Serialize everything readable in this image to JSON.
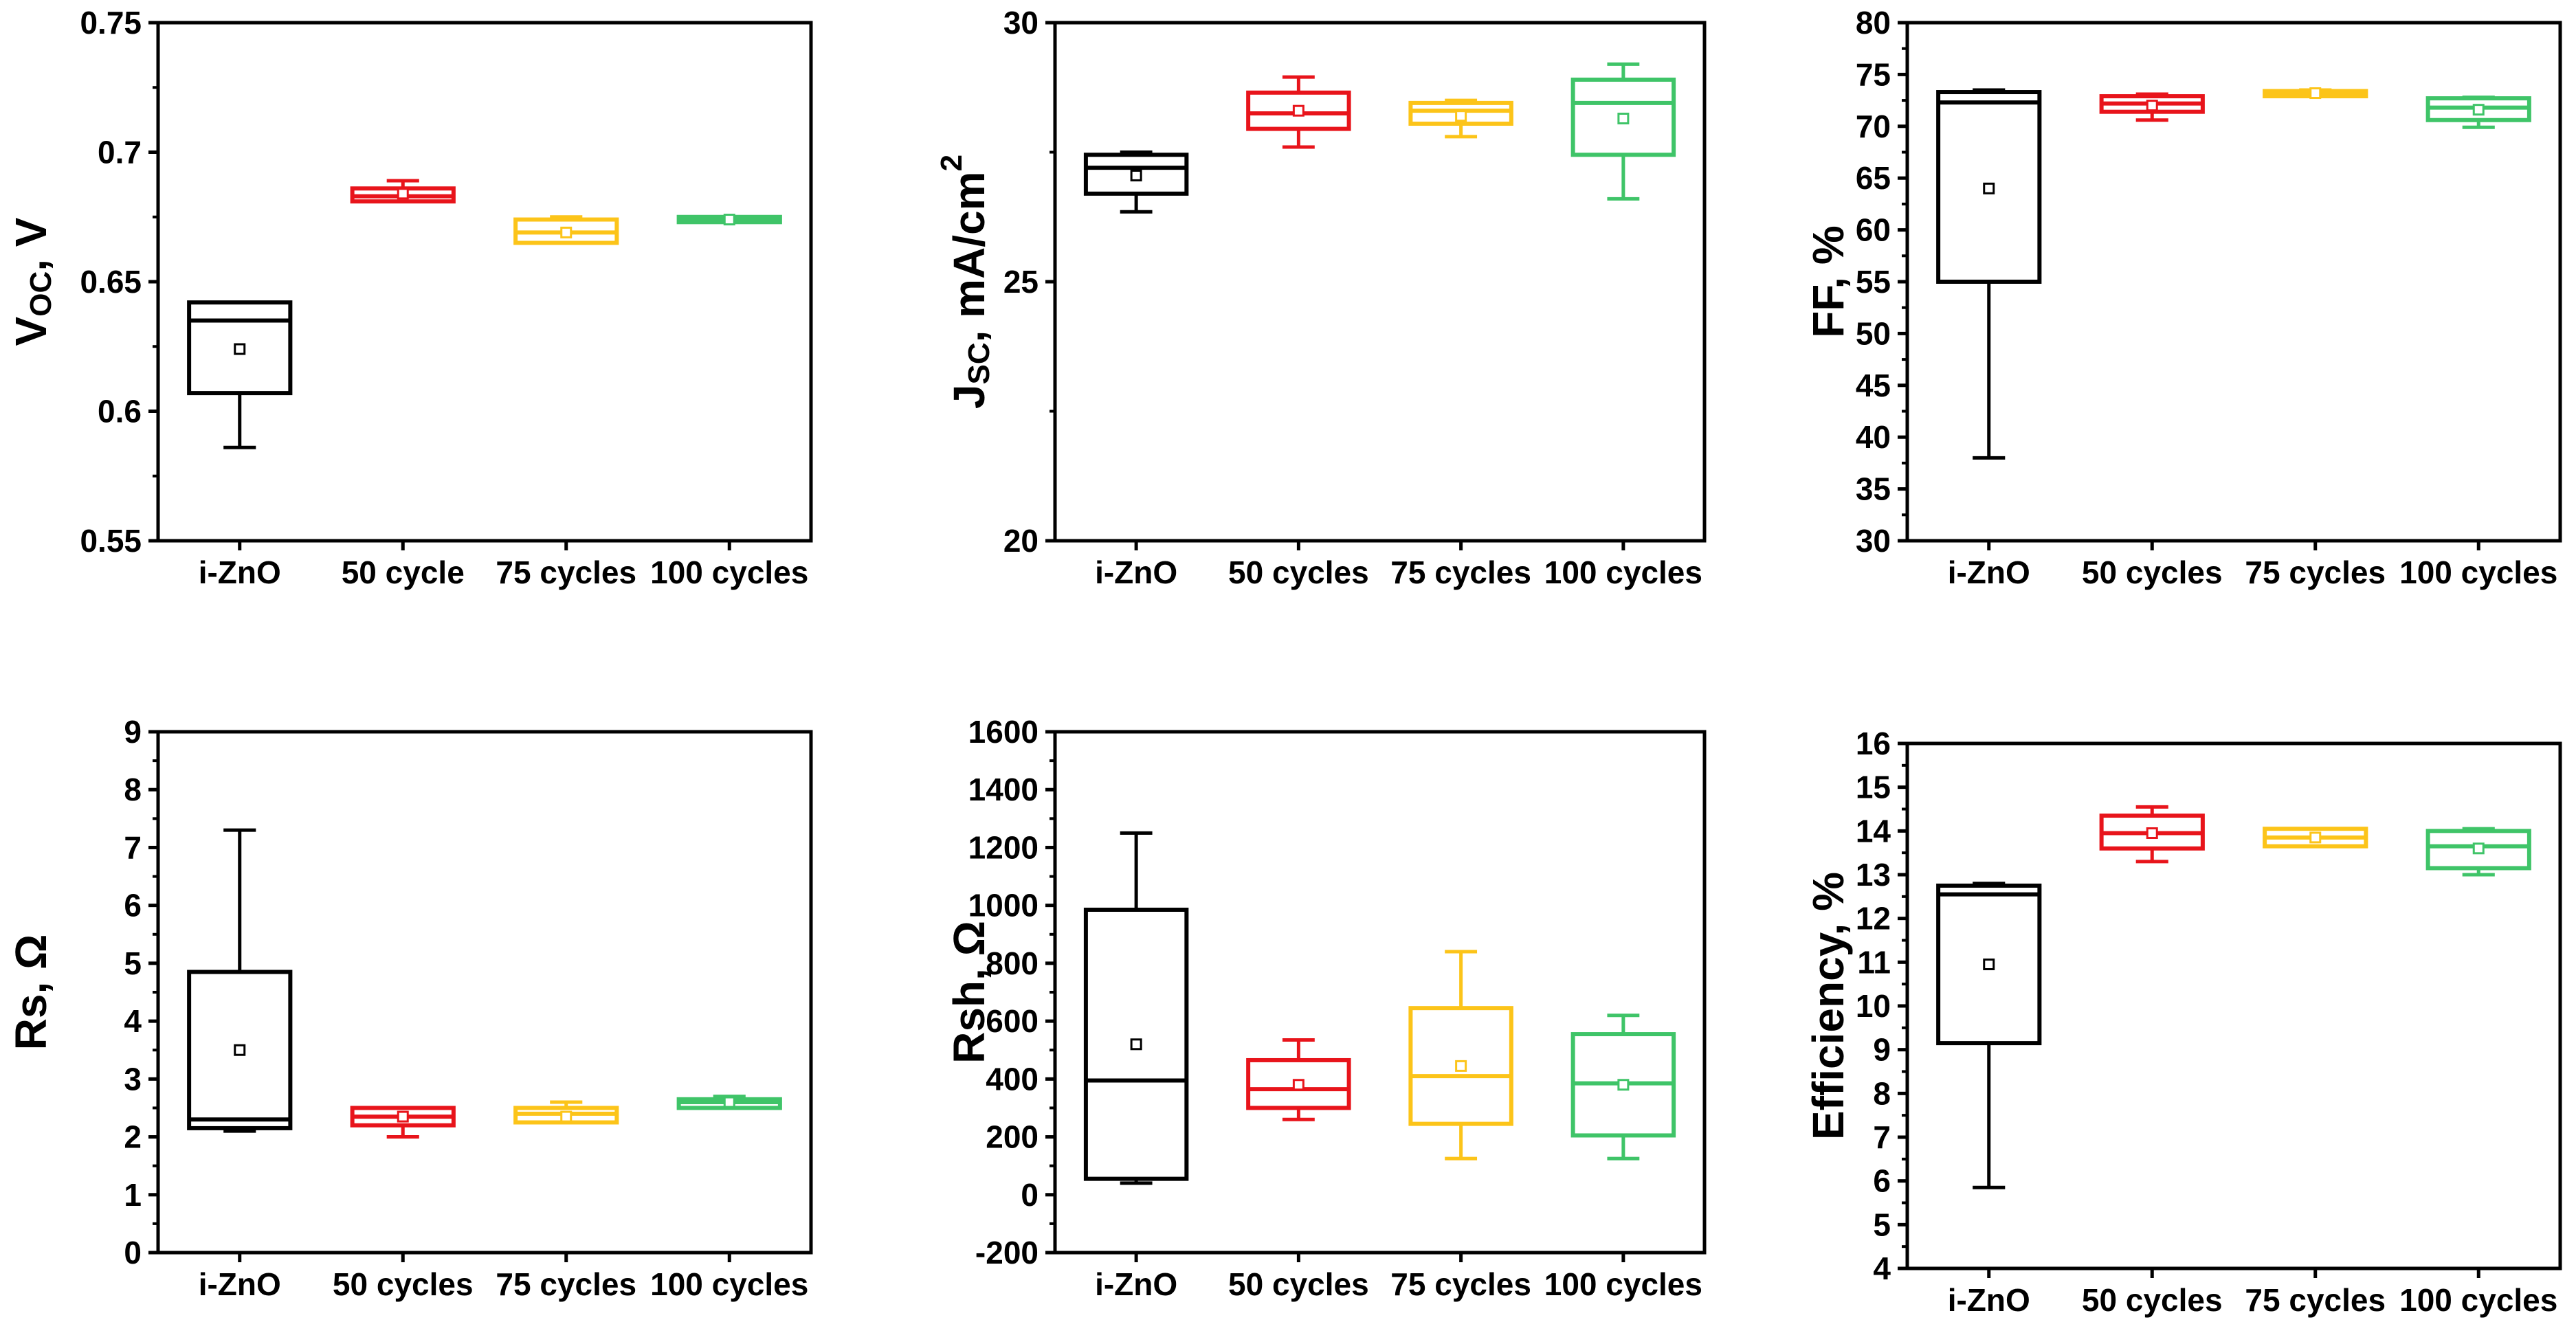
{
  "colors": {
    "i-ZnO": "#000000",
    "50": "#e8141b",
    "75": "#fcc419",
    "100": "#3fc468"
  },
  "chart_data": [
    {
      "id": "voc",
      "type": "box",
      "ylabel": {
        "main": "V",
        "sub": "OC",
        "rest": ", V"
      },
      "ylim": [
        0.55,
        0.75
      ],
      "yticks": [
        0.55,
        0.6,
        0.65,
        0.7,
        0.75
      ],
      "ytick_labels": [
        "0.55",
        "0.6",
        "0.65",
        "0.7",
        "0.75"
      ],
      "categories": [
        "i-ZnO",
        "50 cycle",
        "75 cycles",
        "100 cycles"
      ],
      "series": [
        {
          "name": "i-ZnO",
          "color_key": "i-ZnO",
          "whisker_low": 0.586,
          "q1": 0.607,
          "median": 0.635,
          "q3": 0.642,
          "whisker_high": 0.642,
          "mean": 0.624
        },
        {
          "name": "50 cycle",
          "color_key": "50",
          "whisker_low": 0.681,
          "q1": 0.681,
          "median": 0.683,
          "q3": 0.686,
          "whisker_high": 0.689,
          "mean": 0.684
        },
        {
          "name": "75 cycles",
          "color_key": "75",
          "whisker_low": 0.665,
          "q1": 0.665,
          "median": 0.669,
          "q3": 0.674,
          "whisker_high": 0.675,
          "mean": 0.669
        },
        {
          "name": "100 cycles",
          "color_key": "100",
          "whisker_low": 0.673,
          "q1": 0.673,
          "median": 0.674,
          "q3": 0.675,
          "whisker_high": 0.675,
          "mean": 0.674
        }
      ]
    },
    {
      "id": "jsc",
      "type": "box",
      "ylabel": {
        "main": "J",
        "sub": "SC",
        "rest": ", mA/cm",
        "sup": "2"
      },
      "ylim": [
        20,
        30
      ],
      "yticks": [
        20,
        25,
        30
      ],
      "ytick_labels": [
        "20",
        "25",
        "30"
      ],
      "categories": [
        "i-ZnO",
        "50 cycles",
        "75 cycles",
        "100 cycles"
      ],
      "series": [
        {
          "name": "i-ZnO",
          "color_key": "i-ZnO",
          "whisker_low": 26.35,
          "q1": 26.7,
          "median": 27.2,
          "q3": 27.45,
          "whisker_high": 27.5,
          "mean": 27.05
        },
        {
          "name": "50 cycles",
          "color_key": "50",
          "whisker_low": 27.6,
          "q1": 27.95,
          "median": 28.25,
          "q3": 28.65,
          "whisker_high": 28.95,
          "mean": 28.3
        },
        {
          "name": "75 cycles",
          "color_key": "75",
          "whisker_low": 27.8,
          "q1": 28.05,
          "median": 28.3,
          "q3": 28.45,
          "whisker_high": 28.5,
          "mean": 28.2
        },
        {
          "name": "100 cycles",
          "color_key": "100",
          "whisker_low": 26.6,
          "q1": 27.45,
          "median": 28.45,
          "q3": 28.9,
          "whisker_high": 29.2,
          "mean": 28.15
        }
      ]
    },
    {
      "id": "ff",
      "type": "box",
      "ylabel": {
        "main": "FF, %"
      },
      "ylim": [
        30,
        80
      ],
      "yticks": [
        30,
        35,
        40,
        45,
        50,
        55,
        60,
        65,
        70,
        75,
        80
      ],
      "ytick_labels": [
        "30",
        "35",
        "40",
        "45",
        "50",
        "55",
        "60",
        "65",
        "70",
        "75",
        "80"
      ],
      "categories": [
        "i-ZnO",
        "50 cycles",
        "75 cycles",
        "100 cycles"
      ],
      "series": [
        {
          "name": "i-ZnO",
          "color_key": "i-ZnO",
          "whisker_low": 38,
          "q1": 55,
          "median": 72.3,
          "q3": 73.3,
          "whisker_high": 73.5,
          "mean": 64
        },
        {
          "name": "50 cycles",
          "color_key": "50",
          "whisker_low": 70.6,
          "q1": 71.4,
          "median": 72.2,
          "q3": 72.9,
          "whisker_high": 73.1,
          "mean": 72
        },
        {
          "name": "75 cycles",
          "color_key": "75",
          "whisker_low": 72.9,
          "q1": 72.9,
          "median": 73.2,
          "q3": 73.4,
          "whisker_high": 73.5,
          "mean": 73.2
        },
        {
          "name": "100 cycles",
          "color_key": "100",
          "whisker_low": 69.9,
          "q1": 70.6,
          "median": 71.8,
          "q3": 72.7,
          "whisker_high": 72.8,
          "mean": 71.6
        }
      ]
    },
    {
      "id": "rs",
      "type": "box",
      "ylabel": {
        "main": "Rs, Ω"
      },
      "ylim": [
        0,
        9
      ],
      "yticks": [
        0,
        1,
        2,
        3,
        4,
        5,
        6,
        7,
        8,
        9
      ],
      "ytick_labels": [
        "0",
        "1",
        "2",
        "3",
        "4",
        "5",
        "6",
        "7",
        "8",
        "9"
      ],
      "categories": [
        "i-ZnO",
        "50 cycles",
        "75 cycles",
        "100 cycles"
      ],
      "series": [
        {
          "name": "i-ZnO",
          "color_key": "i-ZnO",
          "whisker_low": 2.1,
          "q1": 2.15,
          "median": 2.3,
          "q3": 4.85,
          "whisker_high": 7.3,
          "mean": 3.5
        },
        {
          "name": "50 cycles",
          "color_key": "50",
          "whisker_low": 2.0,
          "q1": 2.2,
          "median": 2.35,
          "q3": 2.5,
          "whisker_high": 2.5,
          "mean": 2.35
        },
        {
          "name": "75 cycles",
          "color_key": "75",
          "whisker_low": 2.25,
          "q1": 2.25,
          "median": 2.4,
          "q3": 2.5,
          "whisker_high": 2.6,
          "mean": 2.35
        },
        {
          "name": "100 cycles",
          "color_key": "100",
          "whisker_low": 2.5,
          "q1": 2.5,
          "median": 2.6,
          "q3": 2.65,
          "whisker_high": 2.7,
          "mean": 2.6
        }
      ]
    },
    {
      "id": "rsh",
      "type": "box",
      "ylabel": {
        "main": "Rsh, Ω"
      },
      "ylim": [
        -200,
        1600
      ],
      "yticks": [
        -200,
        0,
        200,
        400,
        600,
        800,
        1000,
        1200,
        1400,
        1600
      ],
      "ytick_labels": [
        "-200",
        "0",
        "200",
        "400",
        "600",
        "800",
        "1000",
        "1200",
        "1400",
        "1600"
      ],
      "categories": [
        "i-ZnO",
        "50 cycles",
        "75 cycles",
        "100 cycles"
      ],
      "series": [
        {
          "name": "i-ZnO",
          "color_key": "i-ZnO",
          "whisker_low": 40,
          "q1": 55,
          "median": 395,
          "q3": 985,
          "whisker_high": 1250,
          "mean": 520
        },
        {
          "name": "50 cycles",
          "color_key": "50",
          "whisker_low": 260,
          "q1": 300,
          "median": 365,
          "q3": 465,
          "whisker_high": 535,
          "mean": 380
        },
        {
          "name": "75 cycles",
          "color_key": "75",
          "whisker_low": 125,
          "q1": 245,
          "median": 410,
          "q3": 645,
          "whisker_high": 840,
          "mean": 445
        },
        {
          "name": "100 cycles",
          "color_key": "100",
          "whisker_low": 125,
          "q1": 205,
          "median": 385,
          "q3": 555,
          "whisker_high": 620,
          "mean": 380
        }
      ]
    },
    {
      "id": "eff",
      "type": "box",
      "ylabel": {
        "main": "Efficiency, %"
      },
      "ylim": [
        4,
        16
      ],
      "yticks": [
        4,
        5,
        6,
        7,
        8,
        9,
        10,
        11,
        12,
        13,
        14,
        15,
        16
      ],
      "ytick_labels": [
        "4",
        "5",
        "6",
        "7",
        "8",
        "9",
        "10",
        "11",
        "12",
        "13",
        "14",
        "15",
        "16"
      ],
      "categories": [
        "i-ZnO",
        "50 cycles",
        "75 cycles",
        "100 cycles"
      ],
      "series": [
        {
          "name": "i-ZnO",
          "color_key": "i-ZnO",
          "whisker_low": 5.85,
          "q1": 9.15,
          "median": 12.55,
          "q3": 12.75,
          "whisker_high": 12.8,
          "mean": 10.95
        },
        {
          "name": "50 cycles",
          "color_key": "50",
          "whisker_low": 13.3,
          "q1": 13.6,
          "median": 13.95,
          "q3": 14.35,
          "whisker_high": 14.55,
          "mean": 13.95
        },
        {
          "name": "75 cycles",
          "color_key": "75",
          "whisker_low": 13.65,
          "q1": 13.65,
          "median": 13.85,
          "q3": 14.05,
          "whisker_high": 14.05,
          "mean": 13.85
        },
        {
          "name": "100 cycles",
          "color_key": "100",
          "whisker_low": 13.0,
          "q1": 13.15,
          "median": 13.65,
          "q3": 14.0,
          "whisker_high": 14.05,
          "mean": 13.6
        }
      ]
    }
  ]
}
